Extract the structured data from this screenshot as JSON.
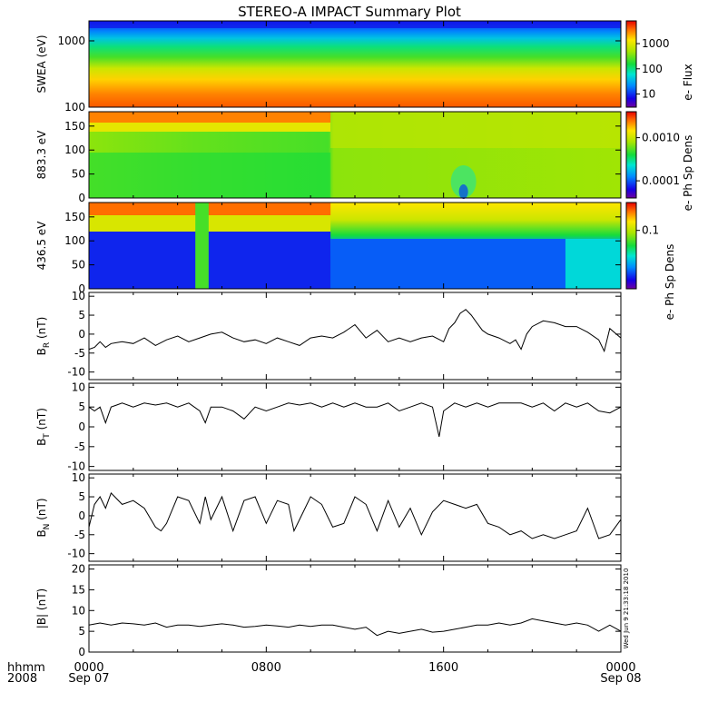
{
  "title": "STEREO-A IMPACT Summary Plot",
  "time_axis": {
    "row1_label": "hhmm",
    "row2_label": "2008",
    "ticks": [
      {
        "t": 0,
        "time": "0000",
        "date": "Sep 07"
      },
      {
        "t": 8,
        "time": "0800",
        "date": ""
      },
      {
        "t": 16,
        "time": "1600",
        "date": ""
      },
      {
        "t": 24,
        "time": "0000",
        "date": "Sep 08"
      }
    ],
    "range_hours": [
      0,
      24
    ]
  },
  "side_stamp": "Wed Jun  9 21:33:18 2010",
  "chart_data": [
    {
      "type": "heatmap",
      "id": "swea",
      "ylabel": "SWEA (eV)",
      "yscale": "log",
      "ylim": [
        100,
        2000
      ],
      "yticks": [
        {
          "v": 100,
          "label": "100"
        },
        {
          "v": 1000,
          "label": "1000"
        }
      ],
      "colorbar": {
        "label": "e- Flux",
        "scale": "log",
        "range": [
          3,
          8000
        ],
        "ticks": [
          {
            "v": 10,
            "label": "10"
          },
          {
            "v": 100,
            "label": "100"
          },
          {
            "v": 1000,
            "label": "1000"
          }
        ]
      }
    },
    {
      "type": "heatmap",
      "id": "pad883",
      "ylabel": "883.3 eV",
      "yscale": "linear",
      "ylim": [
        0,
        180
      ],
      "yticks": [
        {
          "v": 0,
          "label": "0"
        },
        {
          "v": 50,
          "label": "50"
        },
        {
          "v": 100,
          "label": "100"
        },
        {
          "v": 150,
          "label": "150"
        }
      ],
      "colorbar": {
        "label": "e- Ph Sp Dens",
        "scale": "log",
        "range": [
          4e-05,
          0.004
        ],
        "ticks": [
          {
            "v": 0.0001,
            "label": "0.0001"
          },
          {
            "v": 0.001,
            "label": "0.0010"
          }
        ]
      }
    },
    {
      "type": "heatmap",
      "id": "pad436",
      "ylabel": "436.5 eV",
      "yscale": "linear",
      "ylim": [
        0,
        180
      ],
      "yticks": [
        {
          "v": 0,
          "label": "0"
        },
        {
          "v": 50,
          "label": "50"
        },
        {
          "v": 100,
          "label": "100"
        },
        {
          "v": 150,
          "label": "150"
        }
      ],
      "colorbar": {
        "label": "e- Ph Sp Dens",
        "scale": "log",
        "range": [
          0.01,
          0.3
        ],
        "ticks": [
          {
            "v": 0.1,
            "label": "0.1"
          }
        ]
      }
    },
    {
      "type": "line",
      "id": "br",
      "ylabel_main": "B",
      "ylabel_sub": "R",
      "ylabel_unit": " (nT)",
      "ylim": [
        -12,
        11
      ],
      "yticks": [
        {
          "v": -10,
          "label": "-10"
        },
        {
          "v": -5,
          "label": "-5"
        },
        {
          "v": 0,
          "label": "0"
        },
        {
          "v": 5,
          "label": "5"
        },
        {
          "v": 10,
          "label": "10"
        }
      ],
      "x": [
        0,
        0.25,
        0.5,
        0.75,
        1,
        1.5,
        2,
        2.5,
        3,
        3.5,
        4,
        4.5,
        5,
        5.5,
        6,
        6.5,
        7,
        7.5,
        8,
        8.5,
        9,
        9.5,
        10,
        10.5,
        11,
        11.5,
        12,
        12.5,
        13,
        13.5,
        14,
        14.5,
        15,
        15.5,
        16,
        16.25,
        16.5,
        16.75,
        17,
        17.25,
        17.5,
        17.75,
        18,
        18.5,
        19,
        19.25,
        19.5,
        19.75,
        20,
        20.5,
        21,
        21.5,
        22,
        22.5,
        23,
        23.25,
        23.5,
        24
      ],
      "y": [
        -4,
        -3.5,
        -2,
        -3.5,
        -2.5,
        -2,
        -2.5,
        -1,
        -3,
        -1.5,
        -0.5,
        -2,
        -1,
        0,
        0.5,
        -1,
        -2,
        -1.5,
        -2.5,
        -1,
        -2,
        -3,
        -1,
        -0.5,
        -1,
        0.5,
        2.5,
        -1,
        1,
        -2,
        -1,
        -2,
        -1,
        -0.5,
        -2,
        1.5,
        3,
        5.5,
        6.5,
        5,
        3,
        1,
        0,
        -1,
        -2.5,
        -1.5,
        -4,
        0,
        2,
        3.5,
        3,
        2,
        2,
        0.5,
        -1.5,
        -4.5,
        1.5,
        -1
      ]
    },
    {
      "type": "line",
      "id": "bt",
      "ylabel_main": "B",
      "ylabel_sub": "T",
      "ylabel_unit": " (nT)",
      "ylim": [
        -11,
        11
      ],
      "yticks": [
        {
          "v": -10,
          "label": "-10"
        },
        {
          "v": -5,
          "label": "-5"
        },
        {
          "v": 0,
          "label": "0"
        },
        {
          "v": 5,
          "label": "5"
        },
        {
          "v": 10,
          "label": "10"
        }
      ],
      "x": [
        0,
        0.25,
        0.5,
        0.75,
        1,
        1.5,
        2,
        2.5,
        3,
        3.5,
        4,
        4.5,
        5,
        5.25,
        5.5,
        6,
        6.5,
        7,
        7.5,
        8,
        8.5,
        9,
        9.5,
        10,
        10.5,
        11,
        11.5,
        12,
        12.5,
        13,
        13.5,
        14,
        14.5,
        15,
        15.5,
        15.8,
        16,
        16.5,
        17,
        17.5,
        18,
        18.5,
        19,
        19.5,
        20,
        20.5,
        21,
        21.5,
        22,
        22.5,
        23,
        23.5,
        24
      ],
      "y": [
        5,
        4,
        5,
        1,
        5,
        6,
        5,
        6,
        5.5,
        6,
        5,
        6,
        4,
        1,
        5,
        5,
        4,
        2,
        5,
        4,
        5,
        6,
        5.5,
        6,
        5,
        6,
        5,
        6,
        5,
        5,
        6,
        4,
        5,
        6,
        5,
        -2.5,
        4,
        6,
        5,
        6,
        5,
        6,
        6,
        6,
        5,
        6,
        4,
        6,
        5,
        6,
        4,
        3.5,
        5
      ]
    },
    {
      "type": "line",
      "id": "bn",
      "ylabel_main": "B",
      "ylabel_sub": "N",
      "ylabel_unit": " (nT)",
      "ylim": [
        -12,
        11
      ],
      "yticks": [
        {
          "v": -10,
          "label": "-10"
        },
        {
          "v": -5,
          "label": "-5"
        },
        {
          "v": 0,
          "label": "0"
        },
        {
          "v": 5,
          "label": "5"
        },
        {
          "v": 10,
          "label": "10"
        }
      ],
      "x": [
        0,
        0.25,
        0.5,
        0.75,
        1,
        1.5,
        2,
        2.5,
        3,
        3.25,
        3.5,
        4,
        4.5,
        5,
        5.25,
        5.5,
        6,
        6.5,
        7,
        7.5,
        8,
        8.5,
        9,
        9.25,
        9.5,
        10,
        10.5,
        11,
        11.5,
        12,
        12.5,
        13,
        13.5,
        14,
        14.5,
        15,
        15.5,
        16,
        16.5,
        17,
        17.5,
        18,
        18.5,
        19,
        19.5,
        20,
        20.5,
        21,
        21.5,
        22,
        22.5,
        23,
        23.5,
        24
      ],
      "y": [
        -3,
        3,
        5,
        2,
        6,
        3,
        4,
        2,
        -3,
        -4,
        -2,
        5,
        4,
        -2,
        5,
        -1,
        5,
        -4,
        4,
        5,
        -2,
        4,
        3,
        -4,
        -1,
        5,
        3,
        -3,
        -2,
        5,
        3,
        -4,
        4,
        -3,
        2,
        -5,
        1,
        4,
        3,
        2,
        3,
        -2,
        -3,
        -5,
        -4,
        -6,
        -5,
        -6,
        -5,
        -4,
        2,
        -6,
        -5,
        -1
      ]
    },
    {
      "type": "line",
      "id": "btot",
      "ylabel_main": "|B|",
      "ylabel_sub": "",
      "ylabel_unit": " (nT)",
      "ylim": [
        0,
        21
      ],
      "yticks": [
        {
          "v": 0,
          "label": "0"
        },
        {
          "v": 5,
          "label": "5"
        },
        {
          "v": 10,
          "label": "10"
        },
        {
          "v": 15,
          "label": "15"
        },
        {
          "v": 20,
          "label": "20"
        }
      ],
      "x": [
        0,
        0.5,
        1,
        1.5,
        2,
        2.5,
        3,
        3.5,
        4,
        4.5,
        5,
        5.5,
        6,
        6.5,
        7,
        7.5,
        8,
        8.5,
        9,
        9.5,
        10,
        10.5,
        11,
        11.5,
        12,
        12.5,
        13,
        13.5,
        14,
        14.5,
        15,
        15.5,
        16,
        16.5,
        17,
        17.5,
        18,
        18.5,
        19,
        19.5,
        20,
        20.5,
        21,
        21.5,
        22,
        22.5,
        23,
        23.5,
        24
      ],
      "y": [
        6.5,
        7,
        6.5,
        7,
        6.8,
        6.5,
        7,
        6,
        6.5,
        6.5,
        6.2,
        6.5,
        6.8,
        6.5,
        6,
        6.2,
        6.5,
        6.3,
        6,
        6.5,
        6.2,
        6.5,
        6.5,
        6,
        5.5,
        6,
        4,
        5,
        4.5,
        5,
        5.5,
        4.8,
        5,
        5.5,
        6,
        6.5,
        6.5,
        7,
        6.5,
        7,
        8,
        7.5,
        7,
        6.5,
        7,
        6.5,
        5,
        6.5,
        5
      ]
    }
  ]
}
